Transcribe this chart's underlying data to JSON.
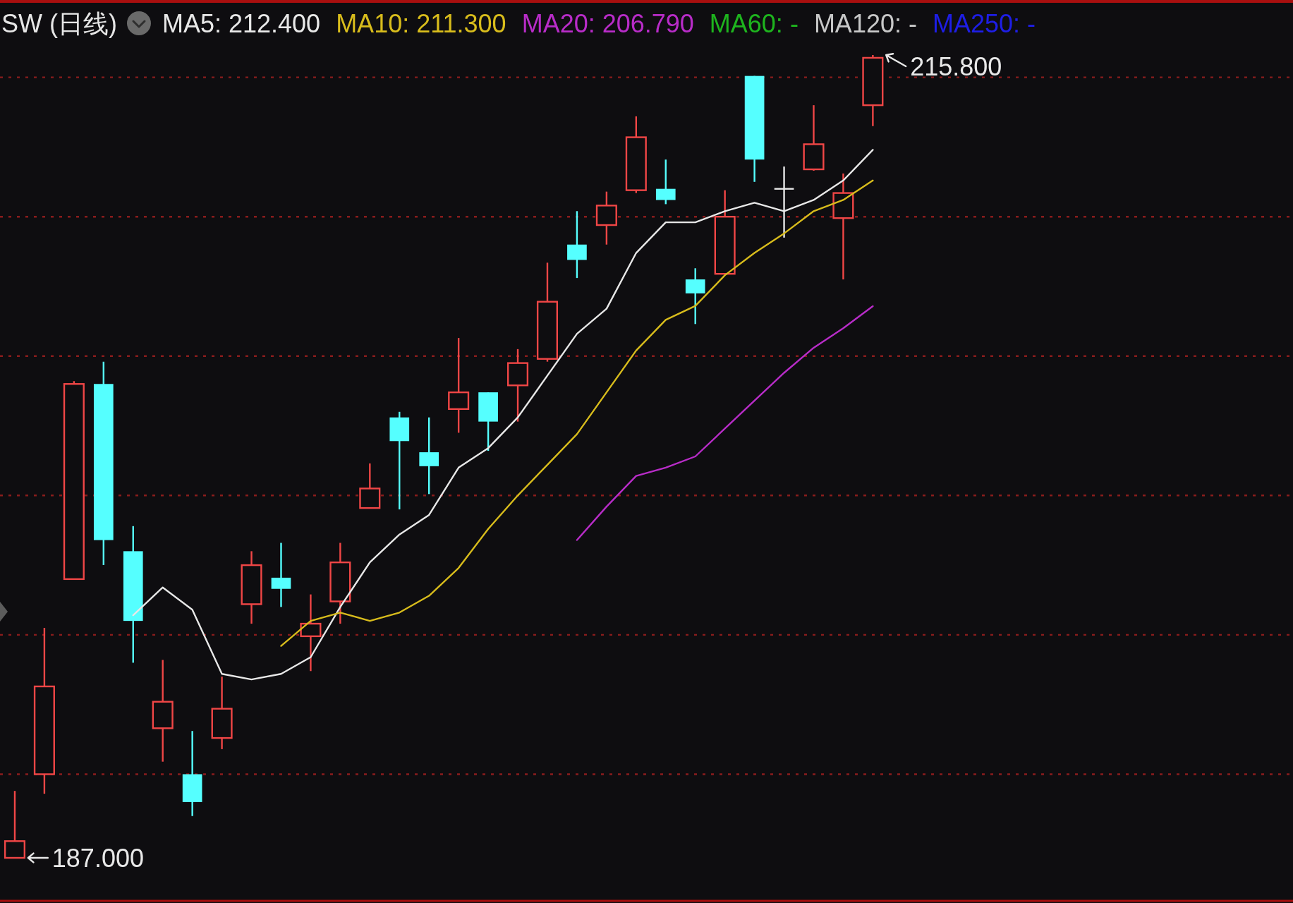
{
  "chart_data": {
    "type": "candlestick",
    "title": "SW (日线)",
    "categories": [
      null,
      null,
      null,
      null,
      null,
      null,
      null,
      null,
      null,
      null,
      null,
      null,
      null,
      null,
      null,
      null,
      null,
      null,
      null,
      null,
      null,
      null,
      null,
      null,
      null,
      null,
      null,
      null,
      null,
      null
    ],
    "ohlc": [
      [
        187.0,
        189.4,
        187.0,
        187.6
      ],
      [
        190.0,
        195.25,
        189.3,
        193.15
      ],
      [
        197.0,
        204.1,
        197.0,
        204.0
      ],
      [
        204.0,
        204.8,
        197.5,
        198.4
      ],
      [
        198.0,
        198.9,
        194.0,
        195.5
      ],
      [
        191.65,
        194.1,
        190.45,
        192.6
      ],
      [
        190.0,
        191.55,
        188.5,
        189.0
      ],
      [
        191.3,
        193.5,
        190.9,
        192.35
      ],
      [
        196.1,
        198.0,
        195.4,
        197.5
      ],
      [
        197.05,
        198.3,
        196.0,
        196.65
      ],
      [
        194.95,
        196.45,
        193.7,
        195.4
      ],
      [
        196.2,
        198.3,
        195.4,
        197.6
      ],
      [
        199.55,
        201.15,
        199.55,
        200.25
      ],
      [
        202.8,
        203.0,
        199.5,
        201.95
      ],
      [
        201.55,
        202.8,
        200.05,
        201.05
      ],
      [
        203.1,
        205.65,
        202.25,
        203.7
      ],
      [
        203.7,
        203.7,
        201.6,
        202.65
      ],
      [
        203.95,
        205.25,
        202.65,
        204.75
      ],
      [
        204.9,
        208.35,
        204.8,
        206.95
      ],
      [
        209.0,
        210.2,
        207.8,
        208.45
      ],
      [
        209.7,
        210.9,
        209.0,
        210.4
      ],
      [
        210.95,
        213.6,
        210.85,
        212.85
      ],
      [
        211.0,
        212.05,
        210.45,
        210.6
      ],
      [
        207.75,
        208.15,
        206.15,
        207.25
      ],
      [
        207.95,
        210.95,
        207.95,
        210.0
      ],
      [
        215.05,
        215.05,
        211.25,
        212.05
      ],
      [
        211.0,
        211.8,
        209.25,
        211.0
      ],
      [
        211.7,
        214.0,
        211.65,
        212.6
      ],
      [
        209.95,
        211.55,
        207.75,
        210.85
      ],
      [
        214.0,
        215.8,
        213.25,
        215.7
      ]
    ],
    "colors": [
      "#f04646",
      "#f04646",
      "#f04646",
      "#55ffff",
      "#55ffff",
      "#f04646",
      "#55ffff",
      "#f04646",
      "#f04646",
      "#55ffff",
      "#f04646",
      "#f04646",
      "#f04646",
      "#55ffff",
      "#55ffff",
      "#f04646",
      "#55ffff",
      "#f04646",
      "#f04646",
      "#55ffff",
      "#f04646",
      "#f04646",
      "#55ffff",
      "#55ffff",
      "#f04646",
      "#55ffff",
      "#e8e8e8",
      "#f04646",
      "#f04646",
      "#f04646"
    ],
    "series": [
      {
        "type": "line",
        "name": "MA5: 212.400",
        "color": "#e8e8e8",
        "values": [
          null,
          null,
          null,
          null,
          195.7,
          196.7,
          195.9,
          193.6,
          193.4,
          193.6,
          194.2,
          196.0,
          197.6,
          198.6,
          199.3,
          201.0,
          201.7,
          202.8,
          204.3,
          205.8,
          206.7,
          208.7,
          209.8,
          209.8,
          210.2,
          210.5,
          210.2,
          210.6,
          211.3,
          212.4
        ]
      },
      {
        "type": "line",
        "name": "MA10: 211.300",
        "color": "#d8bc1c",
        "values": [
          null,
          null,
          null,
          null,
          null,
          null,
          null,
          null,
          null,
          194.6,
          195.5,
          195.8,
          195.5,
          195.8,
          196.4,
          197.4,
          198.8,
          200.0,
          201.1,
          202.2,
          203.7,
          205.2,
          206.3,
          206.8,
          207.9,
          208.7,
          209.4,
          210.2,
          210.6,
          211.3
        ]
      },
      {
        "type": "line",
        "name": "MA20: 206.790",
        "color": "#b82cc8",
        "values": [
          null,
          null,
          null,
          null,
          null,
          null,
          null,
          null,
          null,
          null,
          null,
          null,
          null,
          null,
          null,
          null,
          null,
          null,
          null,
          198.4,
          199.6,
          200.7,
          201.0,
          201.4,
          202.4,
          203.4,
          204.4,
          205.3,
          206.0,
          206.79
        ]
      },
      {
        "type": "line",
        "name": "MA60: -",
        "color": "#1eb41e",
        "values": [
          null,
          null,
          null,
          null,
          null,
          null,
          null,
          null,
          null,
          null,
          null,
          null,
          null,
          null,
          null,
          null,
          null,
          null,
          null,
          null,
          null,
          null,
          null,
          null,
          null,
          null,
          null,
          null,
          null,
          null
        ]
      },
      {
        "type": "line",
        "name": "MA120: -",
        "color": "#c8c8c8",
        "values": [
          null,
          null,
          null,
          null,
          null,
          null,
          null,
          null,
          null,
          null,
          null,
          null,
          null,
          null,
          null,
          null,
          null,
          null,
          null,
          null,
          null,
          null,
          null,
          null,
          null,
          null,
          null,
          null,
          null,
          null
        ]
      },
      {
        "type": "line",
        "name": "MA250: -",
        "color": "#1e1ee6",
        "values": [
          null,
          null,
          null,
          null,
          null,
          null,
          null,
          null,
          null,
          null,
          null,
          null,
          null,
          null,
          null,
          null,
          null,
          null,
          null,
          null,
          null,
          null,
          null,
          null,
          null,
          null,
          null,
          null,
          null,
          null
        ]
      }
    ],
    "yticks": [
      {
        "value": 190,
        "label": null
      },
      {
        "value": 195,
        "label": null
      },
      {
        "value": 200,
        "label": null
      },
      {
        "value": 205,
        "label": null
      },
      {
        "value": 210,
        "label": null
      },
      {
        "value": 215,
        "label": null
      }
    ],
    "grid": "y",
    "legend": "top",
    "annotations": [
      "215.800",
      "187.000"
    ]
  }
}
